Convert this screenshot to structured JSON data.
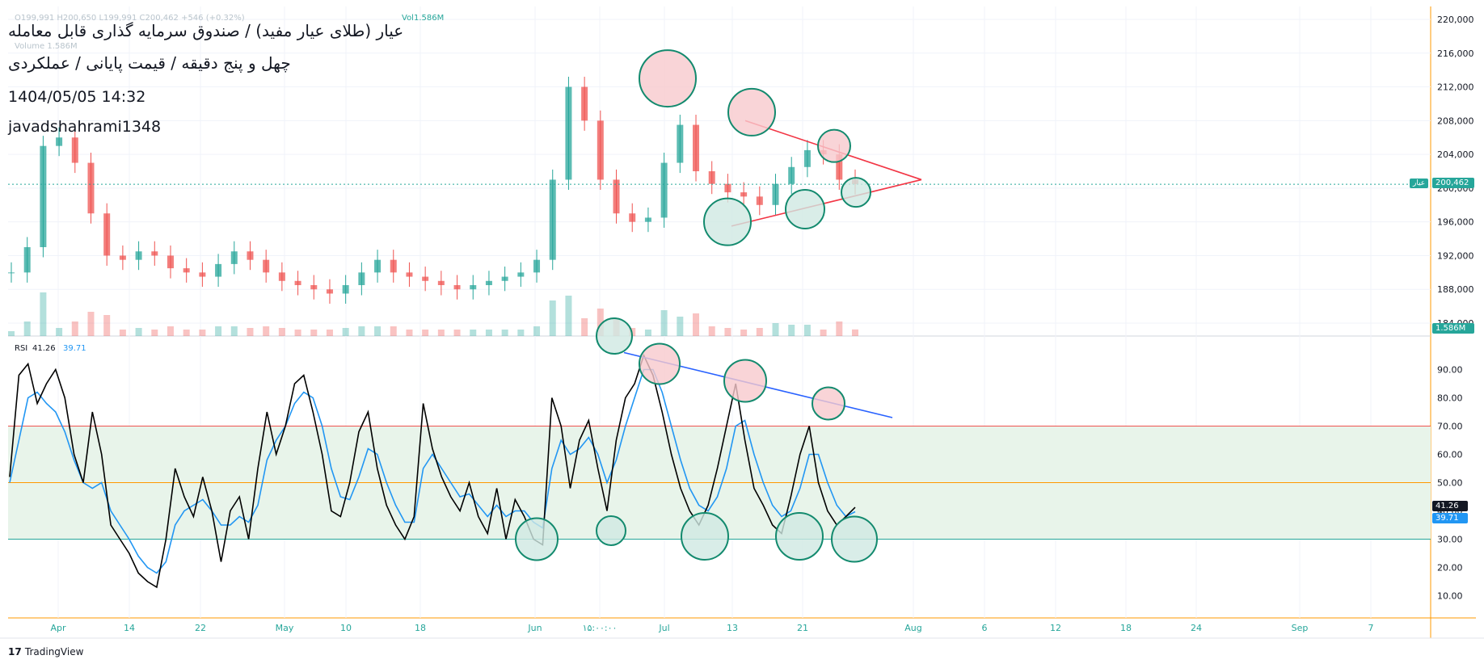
{
  "header": {
    "title_line": "عیار (طلای عیار مفید) / صندوق سرمایه گذاری قابل معامله",
    "subtitle_line": "چهل و پنج دقیقه / قیمت پایانی / عملکردی",
    "datetime": "1404/05/05 14:32",
    "author": "javadshahrami1348",
    "ohlc_line": "O199,991 H200,650 L199,991 C200,462 +546 (+0.32%)",
    "vol_line": "Vol1.586M",
    "volume_label": "Volume 1.586M"
  },
  "price_badge": {
    "value": "200,462",
    "label": "عیار"
  },
  "volume_badge": "1.586M",
  "rsi_legend": {
    "name": "RSI",
    "value": "41.26",
    "ma": "39.71"
  },
  "rsi_badges": {
    "rsi": "41.26",
    "ma": "39.71"
  },
  "brand": "TradingView",
  "colors": {
    "up": "#26a69a",
    "down": "#ef5350",
    "rsi": "#000000",
    "rsi_ma": "#2196f3",
    "band": "#e8f4ea",
    "axis": "#ff9800"
  },
  "chart_data": [
    {
      "type": "candlestick",
      "y_ticks": [
        "220,000",
        "216,000",
        "212,000",
        "208,000",
        "204,000",
        "200,000",
        "196,000",
        "192,000",
        "188,000",
        "184,000"
      ],
      "x_ticks": [
        "Apr",
        "14",
        "22",
        "May",
        "10",
        "18",
        "Jun",
        "۱۵:۰۰:۰۰",
        "Jul",
        "13",
        "21",
        "Aug",
        "6",
        "12",
        "18",
        "24",
        "Sep",
        "7"
      ],
      "close_approx": [
        190000,
        193000,
        205000,
        206000,
        203000,
        197000,
        192000,
        191500,
        192500,
        192000,
        190500,
        190000,
        189500,
        191000,
        192500,
        191500,
        190000,
        189000,
        188500,
        188000,
        187500,
        188500,
        190000,
        191500,
        190000,
        189500,
        189000,
        188500,
        188000,
        188500,
        189000,
        189500,
        190000,
        191500,
        201000,
        212000,
        208000,
        201000,
        197000,
        196000,
        196500,
        203000,
        207500,
        202000,
        200500,
        199500,
        199000,
        198000,
        200500,
        202500,
        204500,
        204000,
        201000,
        200462
      ],
      "last_close": 200462,
      "triangle": {
        "upper": [
          [
            208000,
            "Jul 14"
          ],
          [
            201000,
            "Aug 1"
          ]
        ],
        "lower": [
          [
            195500,
            "Jul 11"
          ],
          [
            201000,
            "Aug 1"
          ]
        ]
      }
    },
    {
      "type": "line",
      "name": "RSI",
      "y_ticks": [
        "90.00",
        "80.00",
        "70.00",
        "60.00",
        "50.00",
        "40.00",
        "30.00",
        "20.00",
        "10.00"
      ],
      "levels": {
        "upper": 70,
        "middle": 50,
        "lower": 30
      },
      "rsi_values": [
        52,
        88,
        92,
        78,
        85,
        90,
        80,
        60,
        50,
        75,
        60,
        35,
        30,
        25,
        18,
        15,
        13,
        30,
        55,
        45,
        38,
        52,
        40,
        22,
        40,
        45,
        30,
        55,
        75,
        60,
        70,
        85,
        88,
        75,
        60,
        40,
        38,
        50,
        68,
        75,
        55,
        42,
        35,
        30,
        38,
        78,
        62,
        52,
        45,
        40,
        50,
        38,
        32,
        48,
        30,
        44,
        38,
        30,
        28,
        80,
        70,
        48,
        65,
        72,
        55,
        40,
        65,
        80,
        85,
        95,
        88,
        75,
        60,
        48,
        40,
        35,
        42,
        55,
        70,
        85,
        65,
        48,
        42,
        35,
        32,
        45,
        60,
        70,
        50,
        40,
        35,
        38,
        41.26
      ],
      "ma_values": [
        50,
        65,
        80,
        82,
        78,
        75,
        68,
        58,
        50,
        48,
        50,
        40,
        35,
        30,
        24,
        20,
        18,
        22,
        35,
        40,
        42,
        44,
        40,
        35,
        35,
        38,
        36,
        42,
        58,
        65,
        70,
        78,
        82,
        80,
        70,
        55,
        45,
        44,
        52,
        62,
        60,
        50,
        42,
        36,
        36,
        55,
        60,
        55,
        50,
        45,
        46,
        42,
        38,
        42,
        38,
        40,
        40,
        36,
        34,
        55,
        65,
        60,
        62,
        66,
        60,
        50,
        58,
        70,
        80,
        90,
        90,
        82,
        70,
        58,
        48,
        42,
        40,
        45,
        55,
        70,
        72,
        60,
        50,
        42,
        38,
        40,
        48,
        60,
        60,
        50,
        42,
        38,
        39.71
      ],
      "trendline": [
        [
          96,
          "Jun 27"
        ],
        [
          73,
          "Aug 1"
        ]
      ]
    }
  ]
}
